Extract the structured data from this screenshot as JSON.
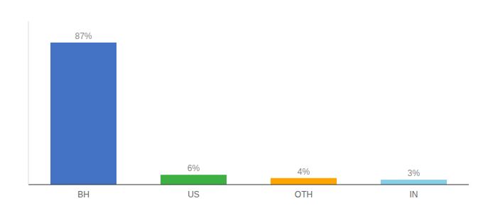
{
  "chart_data": {
    "type": "bar",
    "categories": [
      "BH",
      "US",
      "OTH",
      "IN"
    ],
    "values": [
      87,
      6,
      4,
      3
    ],
    "value_labels": [
      "87%",
      "6%",
      "4%",
      "3%"
    ],
    "colors": [
      "#4472C4",
      "#3CB043",
      "#FFA500",
      "#87CEEB"
    ],
    "ylim": [
      0,
      100
    ],
    "data_labels": true,
    "tick_labels": "x"
  }
}
